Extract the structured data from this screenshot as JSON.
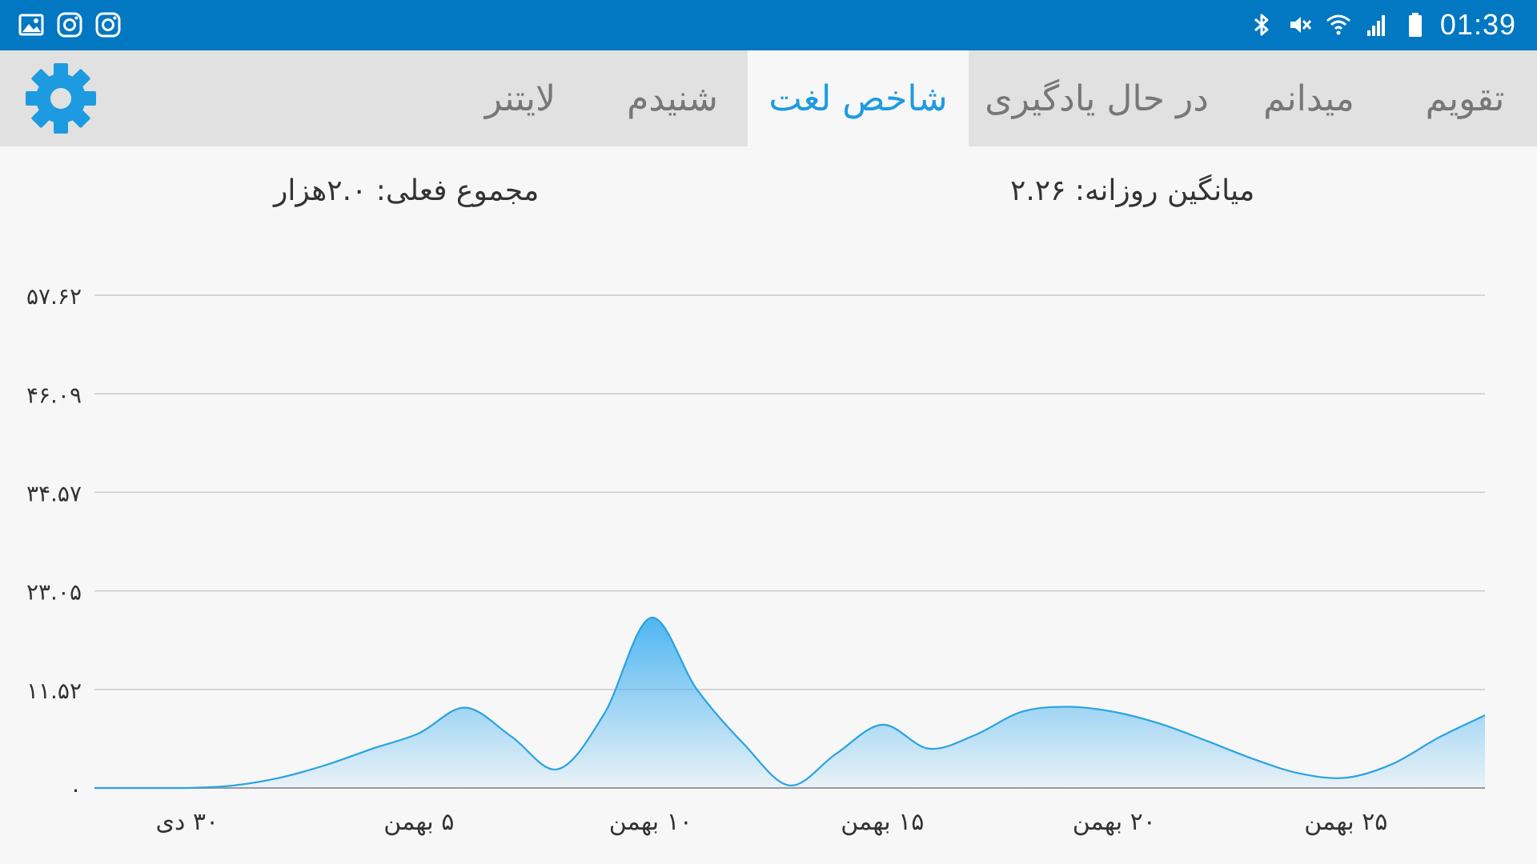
{
  "status_bar": {
    "time": "01:39",
    "left_icons": [
      "gallery-icon",
      "instagram-icon",
      "instagram-icon"
    ],
    "right_icons": [
      "bluetooth-icon",
      "mute-icon",
      "wifi-icon",
      "signal-icon",
      "battery-icon"
    ],
    "background": "#0277c2"
  },
  "tabs": [
    {
      "label": "تقویم",
      "active": false
    },
    {
      "label": "میدانم",
      "active": false
    },
    {
      "label": "در حال یادگیری",
      "active": false
    },
    {
      "label": "شاخص لغت",
      "active": true
    },
    {
      "label": "شنیدم",
      "active": false
    },
    {
      "label": "لایتنر",
      "active": false
    }
  ],
  "settings_icon": "gear-icon",
  "accent_color": "#1e9be0",
  "summary": {
    "daily_average": "میانگین روزانه: ۲.۲۶",
    "current_total": "مجموع فعلی: ۲.۰هزار"
  },
  "chart_data": {
    "type": "area",
    "y_tick_labels": [
      "۰",
      "۱۱.۵۲",
      "۲۳.۰۵",
      "۳۴.۵۷",
      "۴۶.۰۹",
      "۵۷.۶۲"
    ],
    "y_ticks": [
      0,
      11.52,
      23.05,
      34.57,
      46.09,
      57.62
    ],
    "ylim": [
      0,
      57.62
    ],
    "x_tick_labels": [
      "۳۰ دی",
      "۵ بهمن",
      "۱۰ بهمن",
      "۱۵ بهمن",
      "۲۰ بهمن",
      "۲۵ بهمن"
    ],
    "x_tick_days": [
      0,
      5,
      10,
      15,
      20,
      25
    ],
    "xlim": [
      -2,
      28
    ],
    "x": [
      -2,
      -1,
      0,
      1,
      2,
      3,
      4,
      5,
      6,
      7,
      8,
      9,
      10,
      11,
      12,
      13,
      14,
      15,
      16,
      17,
      18,
      19,
      20,
      21,
      22,
      23,
      24,
      25,
      26,
      27,
      28
    ],
    "values": [
      0,
      0,
      0,
      0.3,
      1.2,
      2.7,
      4.6,
      6.4,
      9.4,
      6.0,
      2.2,
      8.7,
      19.9,
      11.5,
      5.2,
      0.3,
      4.0,
      7.4,
      4.6,
      6.2,
      8.9,
      9.5,
      8.9,
      7.5,
      5.5,
      3.4,
      1.7,
      1.2,
      2.8,
      5.9,
      8.5
    ],
    "grid": true,
    "line_color": "#29a3e0",
    "fill_color": "#4fb6f2"
  }
}
